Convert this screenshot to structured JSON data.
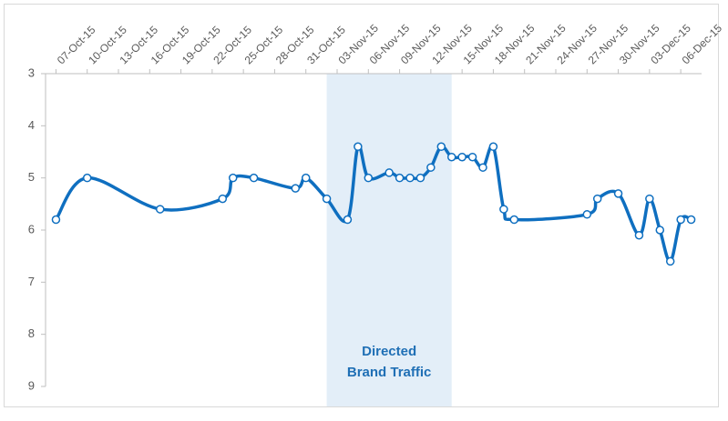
{
  "chart_data": {
    "type": "line",
    "x": [
      "2015-10-07",
      "2015-10-10",
      "2015-10-17",
      "2015-10-23",
      "2015-10-24",
      "2015-10-26",
      "2015-10-30",
      "2015-10-31",
      "2015-11-02",
      "2015-11-04",
      "2015-11-05",
      "2015-11-06",
      "2015-11-08",
      "2015-11-09",
      "2015-11-10",
      "2015-11-11",
      "2015-11-12",
      "2015-11-13",
      "2015-11-14",
      "2015-11-15",
      "2015-11-16",
      "2015-11-17",
      "2015-11-18",
      "2015-11-19",
      "2015-11-20",
      "2015-11-27",
      "2015-11-28",
      "2015-11-30",
      "2015-12-02",
      "2015-12-03",
      "2015-12-04",
      "2015-12-05",
      "2015-12-06",
      "2015-12-07"
    ],
    "values": [
      5.8,
      5.0,
      5.6,
      5.4,
      5.0,
      5.0,
      5.2,
      5.0,
      5.4,
      5.8,
      4.4,
      5.0,
      4.9,
      5.0,
      5.0,
      5.0,
      4.8,
      4.4,
      4.6,
      4.6,
      4.6,
      4.8,
      4.4,
      5.6,
      5.8,
      5.7,
      5.4,
      5.3,
      6.1,
      5.4,
      6.0,
      6.6,
      5.8,
      5.8
    ],
    "color": "#0f6fc0",
    "xlim": [
      "2015-10-06",
      "2015-12-08"
    ],
    "xticks": [
      {
        "value": "2015-10-07",
        "label": "07-Oct-15"
      },
      {
        "value": "2015-10-10",
        "label": "10-Oct-15"
      },
      {
        "value": "2015-10-13",
        "label": "13-Oct-15"
      },
      {
        "value": "2015-10-16",
        "label": "16-Oct-15"
      },
      {
        "value": "2015-10-19",
        "label": "19-Oct-15"
      },
      {
        "value": "2015-10-22",
        "label": "22-Oct-15"
      },
      {
        "value": "2015-10-25",
        "label": "25-Oct-15"
      },
      {
        "value": "2015-10-28",
        "label": "28-Oct-15"
      },
      {
        "value": "2015-10-31",
        "label": "31-Oct-15"
      },
      {
        "value": "2015-11-03",
        "label": "03-Nov-15"
      },
      {
        "value": "2015-11-06",
        "label": "06-Nov-15"
      },
      {
        "value": "2015-11-09",
        "label": "09-Nov-15"
      },
      {
        "value": "2015-11-12",
        "label": "12-Nov-15"
      },
      {
        "value": "2015-11-15",
        "label": "15-Nov-15"
      },
      {
        "value": "2015-11-18",
        "label": "18-Nov-15"
      },
      {
        "value": "2015-11-21",
        "label": "21-Nov-15"
      },
      {
        "value": "2015-11-24",
        "label": "24-Nov-15"
      },
      {
        "value": "2015-11-27",
        "label": "27-Nov-15"
      },
      {
        "value": "2015-11-30",
        "label": "30-Nov-15"
      },
      {
        "value": "2015-12-03",
        "label": "03-Dec-15"
      },
      {
        "value": "2015-12-06",
        "label": "06-Dec-15"
      }
    ],
    "ylim": [
      3,
      9
    ],
    "yticks": [
      3,
      4,
      5,
      6,
      7,
      8,
      9
    ],
    "y_inverted": true,
    "annotation": {
      "x_start": "2015-11-02",
      "x_end": "2015-11-14",
      "lines": [
        "Directed",
        "Brand Traffic"
      ],
      "color": "#e3eef8",
      "text_color": "#1f6fb5"
    }
  }
}
